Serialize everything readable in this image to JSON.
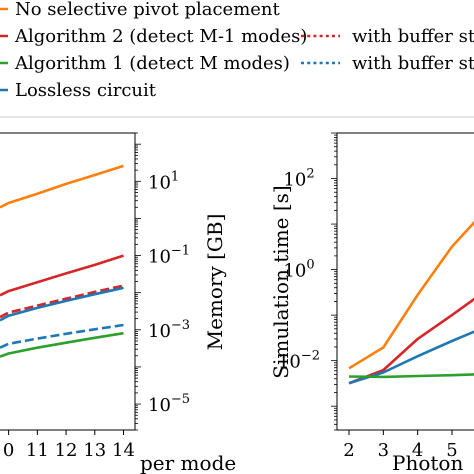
{
  "legend": {
    "left": [
      {
        "label": "No selective pivot placement",
        "color": "#ff7f0e",
        "style": "solid"
      },
      {
        "label": "Algorithm 2 (detect M-1 modes)",
        "color": "#d62728",
        "style": "solid"
      },
      {
        "label": "Algorithm 1 (detect M modes)",
        "color": "#2ca02c",
        "style": "solid"
      },
      {
        "label": "Lossless circuit",
        "color": "#1f77b4",
        "style": "solid"
      }
    ],
    "right": [
      {
        "label": "with buffer strat",
        "color": "#d62728",
        "style": "dotted"
      },
      {
        "label": "with buffer strat",
        "color": "#1f77b4",
        "style": "dotted"
      }
    ]
  },
  "chart_data": [
    {
      "type": "line",
      "xlabel": "per mode",
      "ylabel": "Memory [GB]",
      "yscale": "log",
      "ylim": [
        2e-06,
        200
      ],
      "xlim": [
        9.7,
        14.4
      ],
      "x_ticks": [
        "0",
        "11",
        "12",
        "13",
        "14"
      ],
      "y_ticks": [
        "10^1",
        "10^-1",
        "10^-3",
        "10^-5"
      ],
      "series": [
        {
          "color": "#ff7f0e",
          "style": "solid",
          "x": [
            9.7,
            10,
            11,
            12,
            13,
            14
          ],
          "y": [
            2.0,
            2.6,
            4.6,
            8.5,
            14.8,
            26.0
          ]
        },
        {
          "color": "#d62728",
          "style": "solid",
          "x": [
            9.7,
            10,
            11,
            12,
            13,
            14
          ],
          "y": [
            0.0085,
            0.011,
            0.019,
            0.033,
            0.056,
            0.1
          ]
        },
        {
          "color": "#d62728",
          "style": "dashed",
          "x": [
            9.7,
            10,
            11,
            12,
            13,
            14
          ],
          "y": [
            0.0022,
            0.0029,
            0.0045,
            0.0069,
            0.0105,
            0.0155
          ]
        },
        {
          "color": "#1f77b4",
          "style": "solid",
          "x": [
            9.7,
            10,
            11,
            12,
            13,
            14
          ],
          "y": [
            0.0018,
            0.0024,
            0.0039,
            0.006,
            0.0091,
            0.0135
          ]
        },
        {
          "color": "#1f77b4",
          "style": "dashed",
          "x": [
            9.7,
            10,
            11,
            12,
            13,
            14
          ],
          "y": [
            0.00033,
            0.00042,
            0.00058,
            0.00078,
            0.00103,
            0.00135
          ]
        },
        {
          "color": "#2ca02c",
          "style": "solid",
          "x": [
            9.7,
            10,
            11,
            12,
            13,
            14
          ],
          "y": [
            0.00019,
            0.00023,
            0.00033,
            0.00045,
            0.00061,
            0.00081
          ]
        }
      ]
    },
    {
      "type": "line",
      "xlabel": "Photon",
      "ylabel": "Simulation time [s]",
      "yscale": "log",
      "ylim": [
        0.0003,
        1000
      ],
      "xlim": [
        1.65,
        5.7
      ],
      "x_ticks": [
        "2",
        "3",
        "4",
        "5"
      ],
      "y_ticks": [
        "10^2",
        "10^0",
        "10^-2"
      ],
      "series": [
        {
          "color": "#ff7f0e",
          "style": "solid",
          "x": [
            2,
            3,
            4,
            5,
            5.7
          ],
          "y": [
            0.0068,
            0.0195,
            0.28,
            3.2,
            12.0
          ]
        },
        {
          "color": "#d62728",
          "style": "solid",
          "x": [
            2,
            3,
            4,
            5,
            5.7
          ],
          "y": [
            0.0032,
            0.0062,
            0.03,
            0.1,
            0.24
          ]
        },
        {
          "color": "#1f77b4",
          "style": "solid",
          "x": [
            2,
            3,
            4,
            5,
            5.7
          ],
          "y": [
            0.0032,
            0.0055,
            0.0125,
            0.027,
            0.045
          ]
        },
        {
          "color": "#2ca02c",
          "style": "solid",
          "x": [
            2,
            3,
            4,
            5,
            5.7
          ],
          "y": [
            0.0045,
            0.0044,
            0.0046,
            0.0048,
            0.005
          ]
        }
      ]
    }
  ]
}
